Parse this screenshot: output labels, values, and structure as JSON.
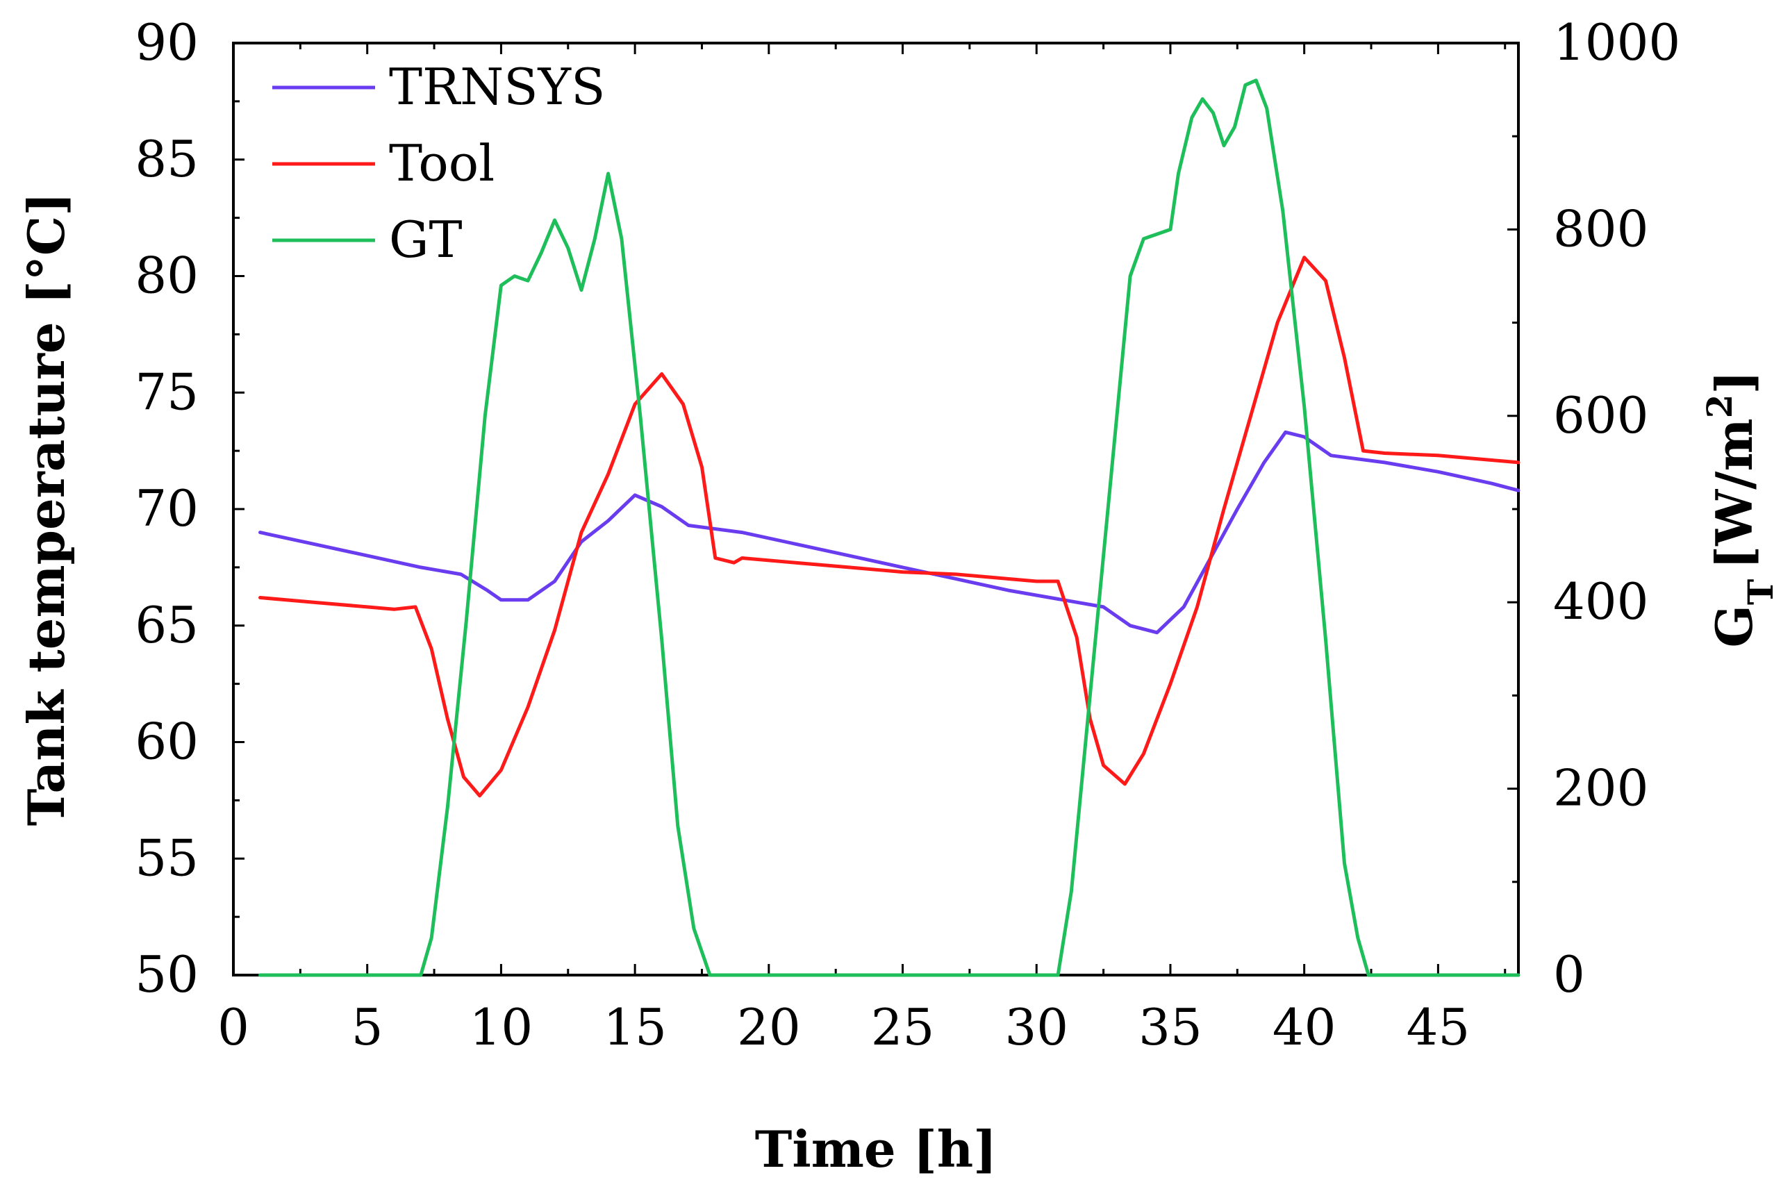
{
  "chart_data": {
    "type": "line",
    "title": "",
    "xlabel": "Time [h]",
    "ylabel_left": "Tank temperature [°C]",
    "ylabel_right_main": "G",
    "ylabel_right_sub": "T",
    "ylabel_right_unit": "[W/m",
    "ylabel_right_sup": "2",
    "ylabel_right_close": "]",
    "xlim": [
      0,
      48
    ],
    "ylim_left": [
      50,
      90
    ],
    "ylim_right": [
      0,
      1000
    ],
    "x_ticks": [
      0,
      5,
      10,
      15,
      20,
      25,
      30,
      35,
      40,
      45
    ],
    "y_left_ticks": [
      50,
      55,
      60,
      65,
      70,
      75,
      80,
      85,
      90
    ],
    "y_right_ticks": [
      0,
      200,
      400,
      600,
      800,
      1000
    ],
    "legend_position": "top-left",
    "grid": false,
    "series": [
      {
        "name": "TRNSYS",
        "axis": "left",
        "color": "#6a3cf0",
        "points": [
          [
            1,
            69.0
          ],
          [
            3,
            68.5
          ],
          [
            5,
            68.0
          ],
          [
            7,
            67.5
          ],
          [
            8.5,
            67.2
          ],
          [
            9.5,
            66.5
          ],
          [
            10,
            66.1
          ],
          [
            11,
            66.1
          ],
          [
            12,
            66.9
          ],
          [
            13,
            68.6
          ],
          [
            14,
            69.5
          ],
          [
            15,
            70.6
          ],
          [
            16,
            70.1
          ],
          [
            17,
            69.3
          ],
          [
            19,
            69.0
          ],
          [
            21,
            68.5
          ],
          [
            23,
            68.0
          ],
          [
            25,
            67.5
          ],
          [
            27,
            67.0
          ],
          [
            29,
            66.5
          ],
          [
            31,
            66.1
          ],
          [
            32.5,
            65.8
          ],
          [
            33.5,
            65.0
          ],
          [
            34.5,
            64.7
          ],
          [
            35.5,
            65.8
          ],
          [
            36.5,
            67.9
          ],
          [
            37.5,
            70.0
          ],
          [
            38.5,
            72.0
          ],
          [
            39.3,
            73.3
          ],
          [
            40,
            73.1
          ],
          [
            41,
            72.3
          ],
          [
            43,
            72.0
          ],
          [
            45,
            71.6
          ],
          [
            47,
            71.1
          ],
          [
            48,
            70.8
          ]
        ]
      },
      {
        "name": "Tool",
        "axis": "left",
        "color": "#ff1a1a",
        "points": [
          [
            1,
            66.2
          ],
          [
            3,
            66.0
          ],
          [
            5,
            65.8
          ],
          [
            6,
            65.7
          ],
          [
            6.8,
            65.8
          ],
          [
            7.4,
            64.0
          ],
          [
            8,
            61.0
          ],
          [
            8.6,
            58.5
          ],
          [
            9.2,
            57.7
          ],
          [
            10,
            58.8
          ],
          [
            11,
            61.5
          ],
          [
            12,
            64.8
          ],
          [
            13,
            69.0
          ],
          [
            14,
            71.5
          ],
          [
            15,
            74.5
          ],
          [
            16,
            75.8
          ],
          [
            16.8,
            74.5
          ],
          [
            17.5,
            71.8
          ],
          [
            18,
            67.9
          ],
          [
            18.7,
            67.7
          ],
          [
            19,
            67.9
          ],
          [
            21,
            67.7
          ],
          [
            23,
            67.5
          ],
          [
            25,
            67.3
          ],
          [
            27,
            67.2
          ],
          [
            29,
            67.0
          ],
          [
            30,
            66.9
          ],
          [
            30.8,
            66.9
          ],
          [
            31.5,
            64.5
          ],
          [
            32,
            61.0
          ],
          [
            32.5,
            59.0
          ],
          [
            33.3,
            58.2
          ],
          [
            34,
            59.5
          ],
          [
            35,
            62.5
          ],
          [
            36,
            65.8
          ],
          [
            37,
            70.0
          ],
          [
            38,
            74.0
          ],
          [
            39,
            78.0
          ],
          [
            40,
            80.8
          ],
          [
            40.8,
            79.8
          ],
          [
            41.5,
            76.5
          ],
          [
            42.2,
            72.5
          ],
          [
            43,
            72.4
          ],
          [
            45,
            72.3
          ],
          [
            48,
            72.0
          ]
        ]
      },
      {
        "name": "GT",
        "axis": "right",
        "color": "#1ebf5a",
        "points": [
          [
            1,
            0
          ],
          [
            6,
            0
          ],
          [
            7,
            0
          ],
          [
            7.4,
            40
          ],
          [
            8,
            180
          ],
          [
            8.7,
            380
          ],
          [
            9.4,
            600
          ],
          [
            10,
            740
          ],
          [
            10.5,
            750
          ],
          [
            11,
            745
          ],
          [
            11.5,
            775
          ],
          [
            12,
            810
          ],
          [
            12.5,
            780
          ],
          [
            13,
            735
          ],
          [
            13.5,
            790
          ],
          [
            14,
            860
          ],
          [
            14.5,
            790
          ],
          [
            15.2,
            600
          ],
          [
            16,
            360
          ],
          [
            16.6,
            160
          ],
          [
            17.2,
            50
          ],
          [
            17.8,
            0
          ],
          [
            18,
            0
          ],
          [
            30,
            0
          ],
          [
            30.8,
            0
          ],
          [
            31.3,
            90
          ],
          [
            32,
            300
          ],
          [
            32.8,
            540
          ],
          [
            33.5,
            750
          ],
          [
            34,
            790
          ],
          [
            34.5,
            795
          ],
          [
            35,
            800
          ],
          [
            35.3,
            860
          ],
          [
            35.8,
            920
          ],
          [
            36.2,
            940
          ],
          [
            36.6,
            925
          ],
          [
            37,
            890
          ],
          [
            37.4,
            910
          ],
          [
            37.8,
            955
          ],
          [
            38.2,
            960
          ],
          [
            38.6,
            930
          ],
          [
            39.2,
            820
          ],
          [
            40,
            610
          ],
          [
            40.8,
            360
          ],
          [
            41.5,
            120
          ],
          [
            42,
            40
          ],
          [
            42.4,
            0
          ],
          [
            45,
            0
          ],
          [
            48,
            0
          ]
        ]
      }
    ]
  }
}
